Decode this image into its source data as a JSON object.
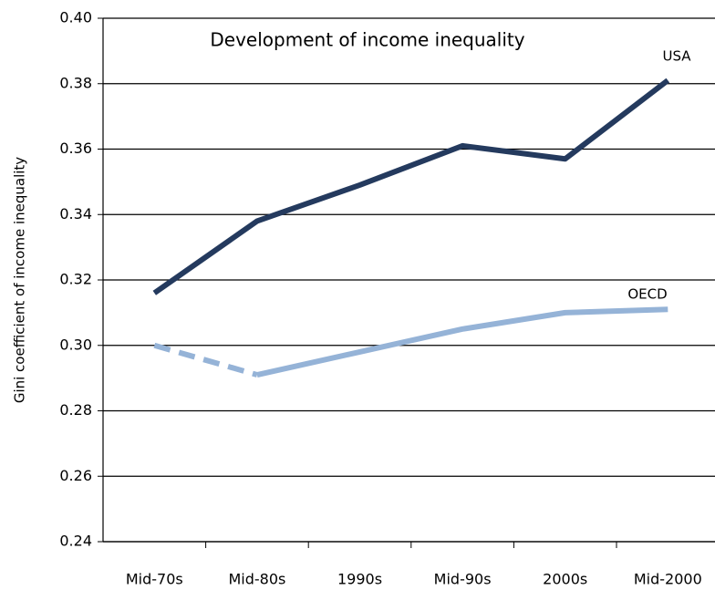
{
  "chart_data": {
    "type": "line",
    "title": "Development of income inequality",
    "y_label": "Gini coefficient of income inequality",
    "categories": [
      "Mid-70s",
      "Mid-80s",
      "1990s",
      "Mid-90s",
      "2000s",
      "Mid-2000"
    ],
    "series": [
      {
        "name": "USA",
        "color": "#243a5e",
        "values": [
          0.316,
          0.338,
          0.349,
          0.361,
          0.357,
          0.381
        ]
      },
      {
        "name": "OECD",
        "color": "#95b3d7",
        "values": [
          0.3,
          0.291,
          0.298,
          0.305,
          0.31,
          0.311
        ],
        "dashed_to_index": 1
      }
    ],
    "ylim": [
      0.24,
      0.4
    ],
    "yticks": [
      0.24,
      0.26,
      0.28,
      {
        "value": 0.3,
        "label": "0.30"
      },
      0.32,
      0.34,
      0.36,
      0.38,
      {
        "value": 0.4,
        "label": "0.40"
      }
    ],
    "grid": true
  }
}
